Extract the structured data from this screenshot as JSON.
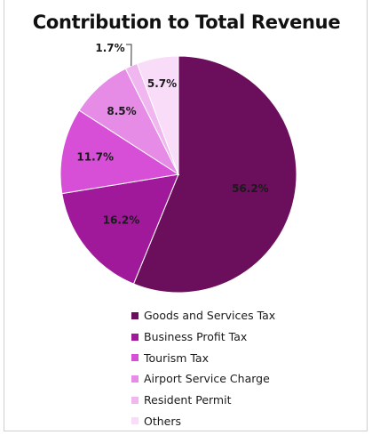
{
  "chart_data": {
    "type": "pie",
    "title": "Contribution to Total Revenue",
    "categories": [
      "Goods and Services Tax",
      "Business Profit Tax",
      "Tourism Tax",
      "Airport Service Charge",
      "Resident Permit",
      "Others"
    ],
    "values": [
      56.2,
      16.2,
      11.7,
      8.5,
      1.7,
      5.7
    ],
    "labels": [
      "56.2%",
      "16.2%",
      "11.7%",
      "8.5%",
      "1.7%",
      "5.7%"
    ],
    "colors": [
      "#6b0f5c",
      "#a0199a",
      "#d64fd6",
      "#e68be6",
      "#f0b6f0",
      "#f8dcf8"
    ],
    "legend": "bottom",
    "start_angle_deg": 0,
    "direction": "clockwise"
  }
}
